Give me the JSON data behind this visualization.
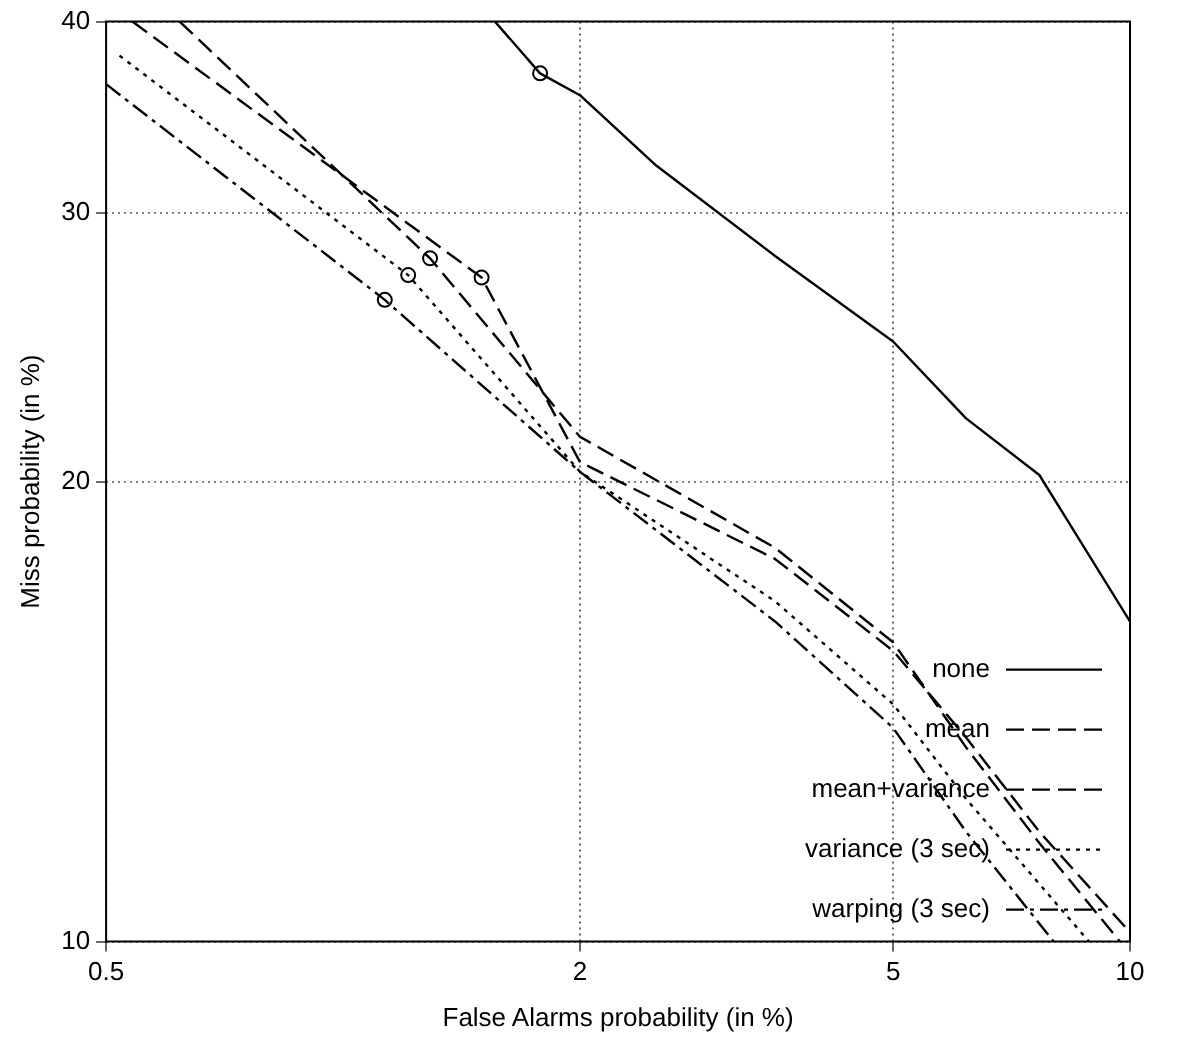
{
  "chart_data": {
    "type": "line",
    "xlabel": "False Alarms probability (in %)",
    "ylabel": "Miss probability (in %)",
    "log": "xy",
    "xlim": [
      0.5,
      10
    ],
    "ylim": [
      10,
      40
    ],
    "xticks": [
      0.5,
      2,
      5,
      10
    ],
    "yticks": [
      10,
      20,
      30,
      40
    ],
    "grid": true,
    "legend": "bottom right",
    "marker": "none",
    "series": [
      {
        "name": "none",
        "color": "#000000",
        "line_style": "solid",
        "x": [
          1.56,
          1.78,
          2,
          2.5,
          3.54,
          5,
          6.19,
          7.67,
          10
        ],
        "values": [
          40,
          37,
          35.8,
          32.2,
          28.1,
          24.7,
          22,
          20.2,
          16.2
        ]
      },
      {
        "name": "mean",
        "color": "#000000",
        "line_style": "dashed",
        "x": [
          0.62,
          1.29,
          2,
          3.54,
          5,
          6.19,
          7.67,
          9.71
        ],
        "values": [
          40,
          28,
          21.4,
          18.1,
          15.7,
          13.4,
          11.6,
          10
        ]
      },
      {
        "name": "mean+variance",
        "color": "#000000",
        "line_style": "dashed",
        "x": [
          0.54,
          1.5,
          2,
          3.54,
          5,
          6.19,
          7.67,
          9.9
        ],
        "values": [
          40,
          27.2,
          20.6,
          17.8,
          15.5,
          13.6,
          11.8,
          10.2
        ]
      },
      {
        "name": "variance (3 sec)",
        "color": "#000000",
        "line_style": "dotted",
        "x": [
          0.52,
          1.21,
          2,
          3.54,
          5,
          6.19,
          8.87
        ],
        "values": [
          38,
          27.3,
          20.3,
          16.7,
          14.3,
          12.4,
          10
        ]
      },
      {
        "name": "warping (3 sec)",
        "color": "#000000",
        "line_style": "dashdot",
        "x": [
          0.5,
          1.13,
          2,
          3.54,
          5,
          6.19,
          8
        ],
        "values": [
          36.4,
          26.3,
          20.3,
          16.2,
          13.8,
          11.8,
          10
        ]
      },
      {
        "type": "scatter",
        "color": "#000000",
        "marker": "circle",
        "x": [
          1.78,
          1.29,
          1.5,
          1.21,
          1.13
        ],
        "values": [
          37,
          28,
          27.2,
          27.3,
          26.3
        ]
      }
    ]
  }
}
